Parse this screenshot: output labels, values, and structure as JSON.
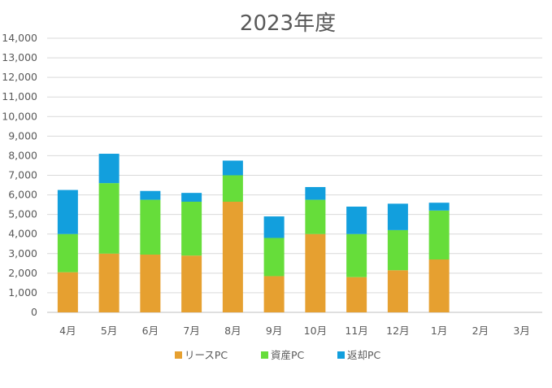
{
  "chart_data": {
    "type": "bar",
    "stacked": true,
    "title": "2023年度",
    "xlabel": "",
    "ylabel": "",
    "categories": [
      "4月",
      "5月",
      "6月",
      "7月",
      "8月",
      "9月",
      "10月",
      "11月",
      "12月",
      "1月",
      "2月",
      "3月"
    ],
    "series": [
      {
        "name": "リースPC",
        "color": "#e6a030",
        "values": [
          2050,
          3000,
          2950,
          2900,
          5650,
          1850,
          4000,
          1800,
          2150,
          2700,
          null,
          null
        ]
      },
      {
        "name": "資産PC",
        "color": "#66dd3a",
        "values": [
          1950,
          3600,
          2800,
          2750,
          1350,
          1950,
          1750,
          2200,
          2050,
          2500,
          null,
          null
        ]
      },
      {
        "name": "返却PC",
        "color": "#129fdd",
        "values": [
          2250,
          1500,
          450,
          450,
          750,
          1100,
          650,
          1400,
          1350,
          400,
          null,
          null
        ]
      }
    ],
    "ylim": [
      0,
      14000
    ],
    "yticks": [
      "0",
      "1,000",
      "2,000",
      "3,000",
      "4,000",
      "5,000",
      "6,000",
      "7,000",
      "8,000",
      "9,000",
      "10,000",
      "11,000",
      "12,000",
      "13,000",
      "14,000"
    ],
    "grid": true,
    "legend_position": "bottom"
  }
}
